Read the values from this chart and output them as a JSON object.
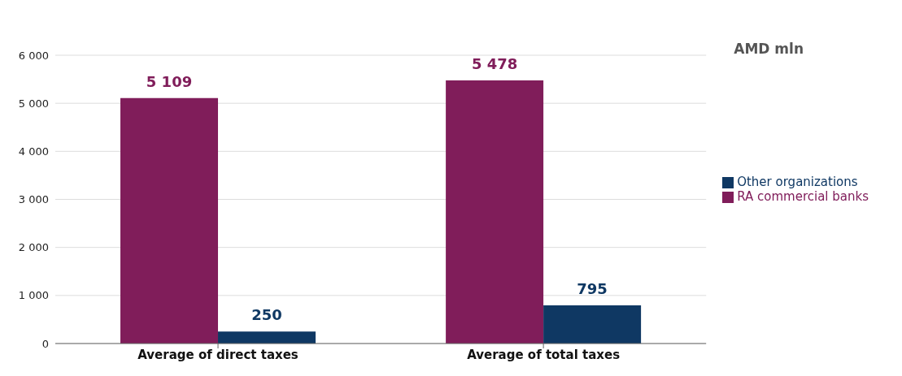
{
  "chart_data": {
    "type": "bar",
    "categories": [
      "Average of direct taxes",
      "Average of total taxes"
    ],
    "series": [
      {
        "name": "RA commercial banks",
        "color": "#801d5a",
        "values": [
          5109,
          5478
        ],
        "value_labels": [
          "5 109",
          "5 478"
        ]
      },
      {
        "name": "Other organizations",
        "color": "#0f3863",
        "values": [
          250,
          795
        ],
        "value_labels": [
          "250",
          "795"
        ]
      }
    ],
    "ylim": [
      0,
      6000
    ],
    "yticks": [
      {
        "value": 0,
        "label": "0"
      },
      {
        "value": 1000,
        "label": "1 000"
      },
      {
        "value": 2000,
        "label": "2 000"
      },
      {
        "value": 3000,
        "label": "3 000"
      },
      {
        "value": 4000,
        "label": "4 000"
      },
      {
        "value": 5000,
        "label": "5 000"
      },
      {
        "value": 6000,
        "label": "6 000"
      }
    ],
    "grid": "y",
    "legend": "right",
    "annotations": [
      "AMD mln"
    ]
  }
}
